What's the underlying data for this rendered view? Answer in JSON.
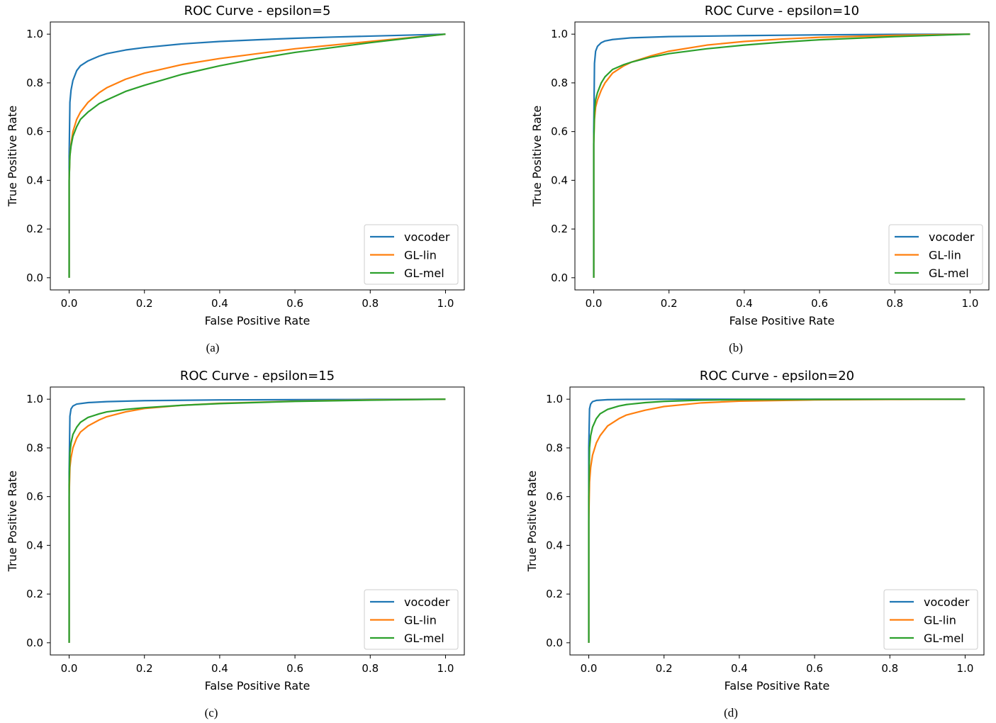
{
  "legend_position": "lower right",
  "series_styles": [
    {
      "name": "vocoder",
      "color": "#1f77b4"
    },
    {
      "name": "GL-lin",
      "color": "#ff7f0e"
    },
    {
      "name": "GL-mel",
      "color": "#2ca02c"
    }
  ],
  "chart_data": [
    {
      "type": "line",
      "caption": "(a)",
      "title": "ROC Curve - epsilon=5",
      "xlabel": "False Positive Rate",
      "ylabel": "True Positive Rate",
      "xlim": [
        -0.05,
        1.05
      ],
      "ylim": [
        -0.05,
        1.05
      ],
      "xticks": [
        "0.0",
        "0.2",
        "0.4",
        "0.6",
        "0.8",
        "1.0"
      ],
      "yticks": [
        "0.0",
        "0.2",
        "0.4",
        "0.6",
        "0.8",
        "1.0"
      ],
      "legend": [
        "vocoder",
        "GL-lin",
        "GL-mel"
      ],
      "series": [
        {
          "name": "vocoder",
          "x": [
            0,
            0,
            0.002,
            0.005,
            0.01,
            0.02,
            0.03,
            0.05,
            0.08,
            0.1,
            0.15,
            0.2,
            0.3,
            0.4,
            0.5,
            0.6,
            0.7,
            0.8,
            0.9,
            1.0
          ],
          "y": [
            0,
            0.5,
            0.72,
            0.77,
            0.81,
            0.85,
            0.87,
            0.89,
            0.91,
            0.92,
            0.935,
            0.945,
            0.96,
            0.97,
            0.977,
            0.983,
            0.988,
            0.992,
            0.996,
            1.0
          ]
        },
        {
          "name": "GL-lin",
          "x": [
            0,
            0,
            0.002,
            0.005,
            0.01,
            0.02,
            0.03,
            0.05,
            0.08,
            0.1,
            0.15,
            0.2,
            0.3,
            0.4,
            0.5,
            0.6,
            0.7,
            0.8,
            0.9,
            1.0
          ],
          "y": [
            0,
            0.4,
            0.5,
            0.55,
            0.6,
            0.65,
            0.68,
            0.72,
            0.76,
            0.78,
            0.815,
            0.84,
            0.875,
            0.9,
            0.92,
            0.94,
            0.955,
            0.97,
            0.985,
            1.0
          ]
        },
        {
          "name": "GL-mel",
          "x": [
            0,
            0,
            0.002,
            0.005,
            0.01,
            0.02,
            0.03,
            0.05,
            0.08,
            0.1,
            0.15,
            0.2,
            0.3,
            0.4,
            0.5,
            0.6,
            0.7,
            0.8,
            0.9,
            1.0
          ],
          "y": [
            0,
            0.4,
            0.5,
            0.54,
            0.58,
            0.62,
            0.65,
            0.68,
            0.715,
            0.73,
            0.765,
            0.79,
            0.835,
            0.87,
            0.9,
            0.925,
            0.945,
            0.965,
            0.983,
            1.0
          ]
        }
      ]
    },
    {
      "type": "line",
      "caption": "(b)",
      "title": "ROC Curve - epsilon=10",
      "xlabel": "False Positive Rate",
      "ylabel": "True Positive Rate",
      "xlim": [
        -0.05,
        1.05
      ],
      "ylim": [
        -0.05,
        1.05
      ],
      "xticks": [
        "0.0",
        "0.2",
        "0.4",
        "0.6",
        "0.8",
        "1.0"
      ],
      "yticks": [
        "0.0",
        "0.2",
        "0.4",
        "0.6",
        "0.8",
        "1.0"
      ],
      "legend": [
        "vocoder",
        "GL-lin",
        "GL-mel"
      ],
      "series": [
        {
          "name": "vocoder",
          "x": [
            0,
            0,
            0.002,
            0.005,
            0.01,
            0.02,
            0.03,
            0.05,
            0.1,
            0.2,
            0.4,
            0.6,
            0.8,
            1.0
          ],
          "y": [
            0,
            0.6,
            0.88,
            0.93,
            0.95,
            0.965,
            0.972,
            0.978,
            0.985,
            0.99,
            0.994,
            0.997,
            0.999,
            1.0
          ]
        },
        {
          "name": "GL-lin",
          "x": [
            0,
            0,
            0.002,
            0.005,
            0.01,
            0.02,
            0.03,
            0.05,
            0.08,
            0.1,
            0.15,
            0.2,
            0.3,
            0.4,
            0.5,
            0.6,
            0.8,
            1.0
          ],
          "y": [
            0,
            0.55,
            0.65,
            0.7,
            0.73,
            0.77,
            0.8,
            0.84,
            0.87,
            0.885,
            0.91,
            0.93,
            0.955,
            0.97,
            0.98,
            0.987,
            0.995,
            1.0
          ]
        },
        {
          "name": "GL-mel",
          "x": [
            0,
            0,
            0.002,
            0.005,
            0.01,
            0.02,
            0.03,
            0.05,
            0.08,
            0.1,
            0.15,
            0.2,
            0.3,
            0.4,
            0.5,
            0.6,
            0.8,
            1.0
          ],
          "y": [
            0,
            0.55,
            0.68,
            0.73,
            0.76,
            0.8,
            0.825,
            0.855,
            0.875,
            0.885,
            0.905,
            0.92,
            0.94,
            0.955,
            0.967,
            0.977,
            0.99,
            1.0
          ]
        }
      ]
    },
    {
      "type": "line",
      "caption": "(c)",
      "title": "ROC Curve - epsilon=15",
      "xlabel": "False Positive Rate",
      "ylabel": "True Positive Rate",
      "xlim": [
        -0.05,
        1.05
      ],
      "ylim": [
        -0.05,
        1.05
      ],
      "xticks": [
        "0.0",
        "0.2",
        "0.4",
        "0.6",
        "0.8",
        "1.0"
      ],
      "yticks": [
        "0.0",
        "0.2",
        "0.4",
        "0.6",
        "0.8",
        "1.0"
      ],
      "legend": [
        "vocoder",
        "GL-lin",
        "GL-mel"
      ],
      "series": [
        {
          "name": "vocoder",
          "x": [
            0,
            0,
            0.002,
            0.005,
            0.01,
            0.02,
            0.05,
            0.1,
            0.2,
            0.4,
            0.6,
            0.8,
            1.0
          ],
          "y": [
            0,
            0.7,
            0.93,
            0.96,
            0.972,
            0.98,
            0.986,
            0.99,
            0.994,
            0.997,
            0.998,
            0.999,
            1.0
          ]
        },
        {
          "name": "GL-lin",
          "x": [
            0,
            0,
            0.002,
            0.005,
            0.01,
            0.02,
            0.03,
            0.05,
            0.08,
            0.1,
            0.15,
            0.2,
            0.3,
            0.4,
            0.6,
            0.8,
            1.0
          ],
          "y": [
            0,
            0.6,
            0.72,
            0.76,
            0.8,
            0.84,
            0.865,
            0.89,
            0.915,
            0.928,
            0.948,
            0.962,
            0.975,
            0.983,
            0.992,
            0.997,
            1.0
          ]
        },
        {
          "name": "GL-mel",
          "x": [
            0,
            0,
            0.002,
            0.005,
            0.01,
            0.02,
            0.03,
            0.05,
            0.08,
            0.1,
            0.15,
            0.2,
            0.3,
            0.4,
            0.6,
            0.8,
            1.0
          ],
          "y": [
            0,
            0.65,
            0.78,
            0.82,
            0.855,
            0.885,
            0.905,
            0.925,
            0.94,
            0.948,
            0.958,
            0.965,
            0.975,
            0.982,
            0.991,
            0.996,
            1.0
          ]
        }
      ]
    },
    {
      "type": "line",
      "caption": "(d)",
      "title": "ROC Curve - epsilon=20",
      "xlabel": "False Positive Rate",
      "ylabel": "True Positive Rate",
      "xlim": [
        -0.05,
        1.05
      ],
      "ylim": [
        -0.05,
        1.05
      ],
      "xticks": [
        "0.0",
        "0.2",
        "0.4",
        "0.6",
        "0.8",
        "1.0"
      ],
      "yticks": [
        "0.0",
        "0.2",
        "0.4",
        "0.6",
        "0.8",
        "1.0"
      ],
      "legend": [
        "vocoder",
        "GL-lin",
        "GL-mel"
      ],
      "series": [
        {
          "name": "vocoder",
          "x": [
            0,
            0,
            0.002,
            0.005,
            0.01,
            0.02,
            0.05,
            0.1,
            0.2,
            0.5,
            1.0
          ],
          "y": [
            0,
            0.8,
            0.96,
            0.98,
            0.99,
            0.995,
            0.998,
            0.999,
            1.0,
            1.0,
            1.0
          ]
        },
        {
          "name": "GL-lin",
          "x": [
            0,
            0,
            0.002,
            0.005,
            0.01,
            0.02,
            0.03,
            0.05,
            0.08,
            0.1,
            0.15,
            0.2,
            0.3,
            0.4,
            0.6,
            0.8,
            1.0
          ],
          "y": [
            0,
            0.5,
            0.66,
            0.72,
            0.77,
            0.82,
            0.85,
            0.89,
            0.92,
            0.935,
            0.955,
            0.97,
            0.985,
            0.992,
            0.997,
            0.999,
            1.0
          ]
        },
        {
          "name": "GL-mel",
          "x": [
            0,
            0,
            0.002,
            0.005,
            0.01,
            0.02,
            0.03,
            0.05,
            0.08,
            0.1,
            0.15,
            0.2,
            0.3,
            0.4,
            0.6,
            0.8,
            1.0
          ],
          "y": [
            0,
            0.6,
            0.8,
            0.85,
            0.885,
            0.92,
            0.94,
            0.958,
            0.972,
            0.978,
            0.986,
            0.991,
            0.996,
            0.998,
            0.999,
            1.0,
            1.0
          ]
        }
      ]
    }
  ]
}
